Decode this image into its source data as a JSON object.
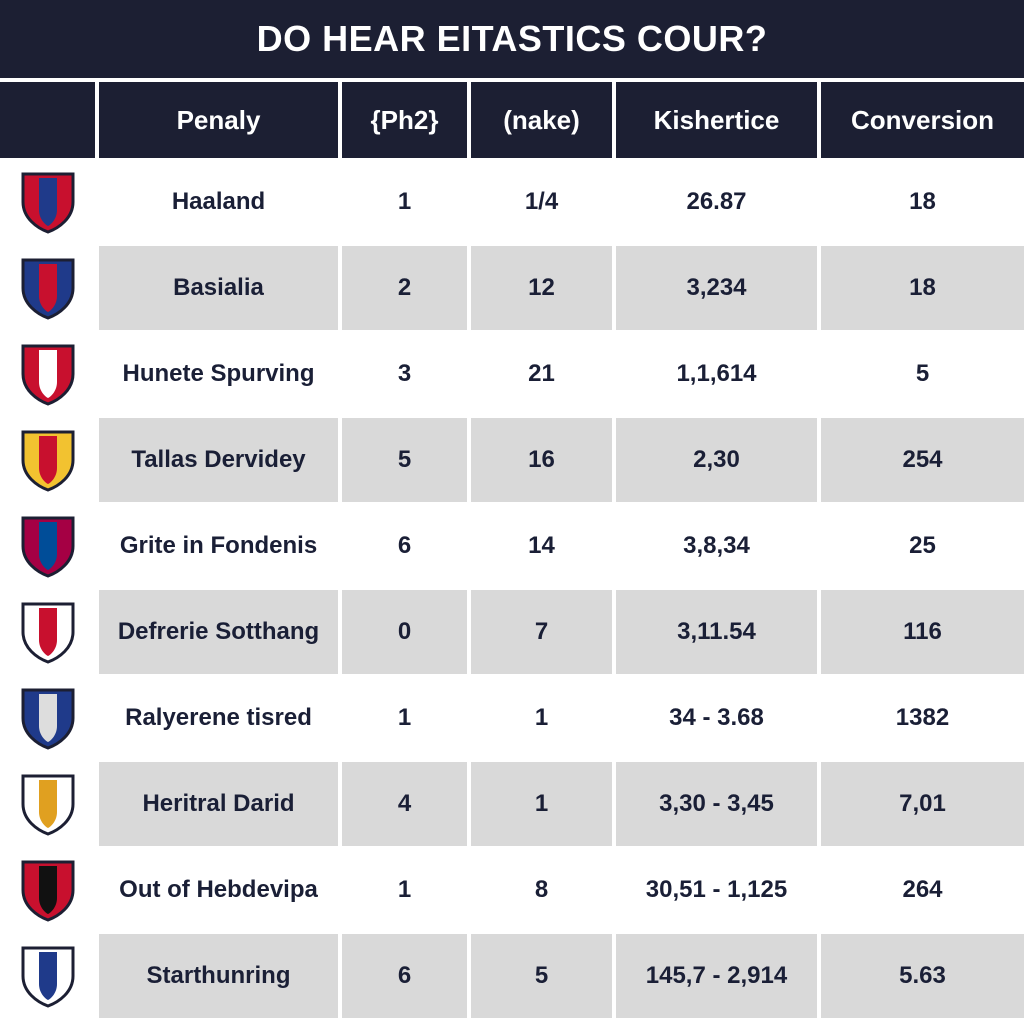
{
  "header": {
    "title": "DO HEAR EITASTICS COUR?"
  },
  "table": {
    "columns": [
      "Penaly",
      "{Ph2}",
      "(nake)",
      "Kishertice",
      "Conversion"
    ],
    "rows": [
      [
        "Haaland",
        "1",
        "1/4",
        "26.87",
        "18"
      ],
      [
        "Basialia",
        "2",
        "12",
        "3,234",
        "18"
      ],
      [
        "Hunete Spurving",
        "3",
        "21",
        "1,1,614",
        "5"
      ],
      [
        "Tallas Dervidey",
        "5",
        "16",
        "2,30",
        "254"
      ],
      [
        "Grite in Fondenis",
        "6",
        "14",
        "3,8,34",
        "25"
      ],
      [
        "Defrerie Sotthang",
        "0",
        "7",
        "3,11.54",
        "116"
      ],
      [
        "Ralyerene tisred",
        "1",
        "1",
        "34 - 3.68",
        "1382"
      ],
      [
        "Heritral Darid",
        "4",
        "1",
        "3,30 - 3,45",
        "7,01"
      ],
      [
        "Out of Hebdevipa",
        "1",
        "8",
        "30,51 - 1,125",
        "264"
      ],
      [
        "Starthunring",
        "6",
        "5",
        "145,7 - 2,914",
        "5.63"
      ]
    ]
  }
}
